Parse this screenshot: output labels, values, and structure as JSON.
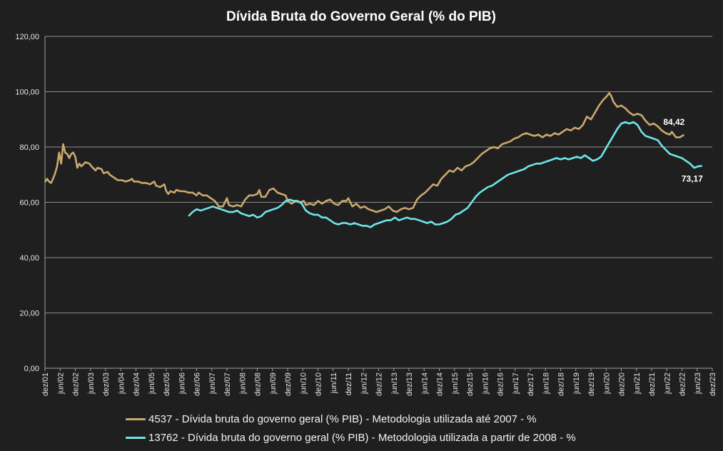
{
  "chart_data": {
    "type": "line",
    "title": "Dívida Bruta do Governo Geral (% do PIB)",
    "xlabel": "",
    "ylabel": "",
    "ylim": [
      0,
      120
    ],
    "y_ticks": [
      0,
      20,
      40,
      60,
      80,
      100,
      120
    ],
    "y_tick_labels": [
      "0,00",
      "20,00",
      "40,00",
      "60,00",
      "80,00",
      "100,00",
      "120,00"
    ],
    "x_tick_labels": [
      "dez/01",
      "jun/02",
      "dez/02",
      "jun/03",
      "dez/03",
      "jun/04",
      "dez/04",
      "jun/05",
      "dez/05",
      "jun/06",
      "dez/06",
      "jun/07",
      "dez/07",
      "jun/08",
      "dez/08",
      "jun/09",
      "dez/09",
      "jun/10",
      "dez/10",
      "jun/11",
      "dez/11",
      "jun/12",
      "dez/12",
      "jun/13",
      "dez/13",
      "jun/14",
      "dez/14",
      "jun/15",
      "dez/15",
      "jun/16",
      "dez/16",
      "jun/17",
      "dez/17",
      "jun/18",
      "dez/18",
      "jun/19",
      "dez/19",
      "jun/20",
      "dez/20",
      "jun/21",
      "dez/21",
      "jun/22",
      "dez/22",
      "jun/23",
      "dez/23"
    ],
    "grid": true,
    "series": [
      {
        "name": "4537 - Dívida bruta do governo geral (% PIB) - Metodologia utilizada até 2007 - %",
        "color": "#c9a96e",
        "last_label": "84,42",
        "points": [
          [
            0,
            67.3
          ],
          [
            1,
            68.5
          ],
          [
            2,
            67.5
          ],
          [
            3,
            67.0
          ],
          [
            4,
            68.5
          ],
          [
            5,
            70.5
          ],
          [
            6,
            73.0
          ],
          [
            7,
            78.0
          ],
          [
            8,
            74.0
          ],
          [
            9,
            81.0
          ],
          [
            10,
            78.0
          ],
          [
            11,
            77.5
          ],
          [
            12,
            76.0
          ],
          [
            13,
            77.5
          ],
          [
            14,
            78.0
          ],
          [
            15,
            76.5
          ],
          [
            16,
            72.5
          ],
          [
            17,
            74.0
          ],
          [
            18,
            73.0
          ],
          [
            20,
            74.5
          ],
          [
            22,
            74.0
          ],
          [
            23,
            73.0
          ],
          [
            25,
            71.5
          ],
          [
            26,
            72.5
          ],
          [
            28,
            72.0
          ],
          [
            29,
            70.5
          ],
          [
            31,
            71.0
          ],
          [
            32,
            70.0
          ],
          [
            34,
            69.0
          ],
          [
            36,
            68.0
          ],
          [
            38,
            68.0
          ],
          [
            40,
            67.5
          ],
          [
            42,
            68.0
          ],
          [
            43,
            68.5
          ],
          [
            44,
            67.5
          ],
          [
            46,
            67.5
          ],
          [
            48,
            67.0
          ],
          [
            50,
            67.0
          ],
          [
            52,
            66.5
          ],
          [
            54,
            67.5
          ],
          [
            55,
            66.0
          ],
          [
            57,
            65.5
          ],
          [
            59,
            66.5
          ],
          [
            60,
            64.0
          ],
          [
            61,
            63.0
          ],
          [
            62,
            64.0
          ],
          [
            64,
            63.5
          ],
          [
            65,
            64.5
          ],
          [
            67,
            64.0
          ],
          [
            69,
            64.0
          ],
          [
            71,
            63.5
          ],
          [
            73,
            63.5
          ],
          [
            75,
            62.5
          ],
          [
            76,
            63.5
          ],
          [
            78,
            62.5
          ],
          [
            80,
            62.5
          ],
          [
            82,
            61.5
          ],
          [
            84,
            60.5
          ],
          [
            86,
            58.5
          ],
          [
            88,
            58.5
          ],
          [
            90,
            61.5
          ],
          [
            91,
            59.0
          ],
          [
            93,
            58.5
          ],
          [
            95,
            59.0
          ],
          [
            97,
            58.5
          ],
          [
            99,
            61.0
          ],
          [
            101,
            62.5
          ],
          [
            103,
            62.5
          ],
          [
            105,
            63.0
          ],
          [
            106,
            64.5
          ],
          [
            107,
            62.0
          ],
          [
            109,
            62.0
          ],
          [
            111,
            64.5
          ],
          [
            113,
            65.0
          ],
          [
            115,
            63.5
          ],
          [
            117,
            63.0
          ],
          [
            119,
            62.5
          ],
          [
            120,
            60.5
          ],
          [
            122,
            59.5
          ],
          [
            124,
            60.5
          ],
          [
            126,
            60.0
          ],
          [
            128,
            60.5
          ],
          [
            129,
            59.0
          ],
          [
            131,
            59.5
          ],
          [
            133,
            59.0
          ],
          [
            135,
            60.5
          ],
          [
            137,
            59.5
          ],
          [
            139,
            60.5
          ],
          [
            141,
            61.0
          ],
          [
            143,
            59.5
          ],
          [
            145,
            59.0
          ],
          [
            147,
            60.5
          ],
          [
            149,
            60.5
          ],
          [
            150,
            61.5
          ],
          [
            152,
            58.5
          ],
          [
            154,
            59.5
          ],
          [
            156,
            58.0
          ],
          [
            158,
            58.5
          ],
          [
            160,
            57.5
          ],
          [
            162,
            57.0
          ],
          [
            164,
            56.5
          ],
          [
            166,
            57.0
          ],
          [
            168,
            57.5
          ],
          [
            170,
            58.5
          ],
          [
            172,
            57.0
          ],
          [
            174,
            56.5
          ],
          [
            176,
            57.5
          ],
          [
            178,
            58.0
          ],
          [
            180,
            57.5
          ],
          [
            182,
            58.0
          ],
          [
            184,
            61.0
          ],
          [
            186,
            62.5
          ],
          [
            188,
            63.5
          ],
          [
            190,
            65.0
          ],
          [
            192,
            66.5
          ],
          [
            194,
            66.0
          ],
          [
            196,
            68.5
          ],
          [
            198,
            70.0
          ],
          [
            200,
            71.5
          ],
          [
            202,
            71.0
          ],
          [
            204,
            72.5
          ],
          [
            206,
            71.5
          ],
          [
            208,
            73.0
          ],
          [
            210,
            73.5
          ],
          [
            212,
            74.5
          ],
          [
            214,
            76.0
          ],
          [
            216,
            77.5
          ],
          [
            218,
            78.5
          ],
          [
            220,
            79.5
          ],
          [
            222,
            80.0
          ],
          [
            224,
            79.5
          ],
          [
            226,
            81.0
          ],
          [
            228,
            81.5
          ],
          [
            230,
            82.0
          ],
          [
            232,
            83.0
          ],
          [
            234,
            83.5
          ],
          [
            236,
            84.5
          ],
          [
            238,
            85.0
          ],
          [
            240,
            84.5
          ],
          [
            242,
            84.0
          ],
          [
            244,
            84.5
          ],
          [
            246,
            83.5
          ],
          [
            248,
            84.5
          ],
          [
            250,
            84.0
          ],
          [
            252,
            85.0
          ],
          [
            254,
            84.5
          ],
          [
            256,
            85.5
          ],
          [
            258,
            86.5
          ],
          [
            260,
            86.0
          ],
          [
            262,
            87.0
          ],
          [
            264,
            86.5
          ],
          [
            266,
            88.0
          ],
          [
            268,
            91.0
          ],
          [
            270,
            90.0
          ],
          [
            272,
            92.5
          ],
          [
            274,
            95.0
          ],
          [
            276,
            97.0
          ],
          [
            278,
            98.5
          ],
          [
            279,
            99.5
          ],
          [
            280,
            98.5
          ],
          [
            281,
            96.5
          ],
          [
            283,
            94.5
          ],
          [
            285,
            95.0
          ],
          [
            287,
            94.0
          ],
          [
            289,
            92.5
          ],
          [
            291,
            91.5
          ],
          [
            293,
            92.0
          ],
          [
            295,
            91.5
          ],
          [
            297,
            89.5
          ],
          [
            299,
            88.0
          ],
          [
            301,
            88.5
          ],
          [
            303,
            87.5
          ],
          [
            305,
            86.0
          ],
          [
            307,
            85.0
          ],
          [
            309,
            84.5
          ],
          [
            310,
            85.5
          ],
          [
            312,
            83.5
          ],
          [
            314,
            83.5
          ],
          [
            316,
            84.42
          ]
        ]
      },
      {
        "name": "13762 - Dívida bruta do governo geral (% PIB) - Metodologia utilizada a partir de 2008 - %",
        "color": "#6ee6e6",
        "last_label": "73,17",
        "points": [
          [
            71,
            55.0
          ],
          [
            73,
            56.5
          ],
          [
            75,
            57.5
          ],
          [
            77,
            57.0
          ],
          [
            79,
            57.5
          ],
          [
            81,
            58.0
          ],
          [
            83,
            58.5
          ],
          [
            85,
            58.0
          ],
          [
            87,
            57.5
          ],
          [
            89,
            57.0
          ],
          [
            91,
            56.5
          ],
          [
            93,
            56.5
          ],
          [
            95,
            57.0
          ],
          [
            97,
            56.0
          ],
          [
            99,
            55.5
          ],
          [
            101,
            55.0
          ],
          [
            103,
            55.5
          ],
          [
            105,
            54.5
          ],
          [
            107,
            55.0
          ],
          [
            109,
            56.5
          ],
          [
            111,
            57.0
          ],
          [
            113,
            57.5
          ],
          [
            115,
            58.0
          ],
          [
            117,
            59.0
          ],
          [
            119,
            60.5
          ],
          [
            121,
            61.0
          ],
          [
            123,
            60.5
          ],
          [
            125,
            60.5
          ],
          [
            127,
            59.5
          ],
          [
            129,
            57.0
          ],
          [
            131,
            56.0
          ],
          [
            133,
            55.5
          ],
          [
            135,
            55.5
          ],
          [
            137,
            54.5
          ],
          [
            139,
            54.5
          ],
          [
            141,
            53.5
          ],
          [
            143,
            52.5
          ],
          [
            145,
            52.0
          ],
          [
            147,
            52.5
          ],
          [
            149,
            52.5
          ],
          [
            151,
            52.0
          ],
          [
            153,
            52.5
          ],
          [
            155,
            52.0
          ],
          [
            157,
            51.5
          ],
          [
            159,
            51.5
          ],
          [
            161,
            51.0
          ],
          [
            163,
            52.0
          ],
          [
            165,
            52.5
          ],
          [
            167,
            53.0
          ],
          [
            169,
            53.5
          ],
          [
            171,
            53.5
          ],
          [
            173,
            54.5
          ],
          [
            175,
            53.5
          ],
          [
            177,
            54.0
          ],
          [
            179,
            54.5
          ],
          [
            181,
            54.0
          ],
          [
            183,
            54.0
          ],
          [
            185,
            53.5
          ],
          [
            187,
            53.0
          ],
          [
            189,
            52.5
          ],
          [
            191,
            53.0
          ],
          [
            193,
            52.0
          ],
          [
            195,
            52.0
          ],
          [
            197,
            52.5
          ],
          [
            199,
            53.0
          ],
          [
            201,
            54.0
          ],
          [
            203,
            55.5
          ],
          [
            205,
            56.0
          ],
          [
            207,
            57.0
          ],
          [
            209,
            58.0
          ],
          [
            211,
            60.0
          ],
          [
            213,
            62.0
          ],
          [
            215,
            63.5
          ],
          [
            217,
            64.5
          ],
          [
            219,
            65.5
          ],
          [
            221,
            66.0
          ],
          [
            223,
            67.0
          ],
          [
            225,
            68.0
          ],
          [
            227,
            69.0
          ],
          [
            229,
            70.0
          ],
          [
            231,
            70.5
          ],
          [
            233,
            71.0
          ],
          [
            235,
            71.5
          ],
          [
            237,
            72.0
          ],
          [
            239,
            73.0
          ],
          [
            241,
            73.5
          ],
          [
            243,
            74.0
          ],
          [
            245,
            74.0
          ],
          [
            247,
            74.5
          ],
          [
            249,
            75.0
          ],
          [
            251,
            75.5
          ],
          [
            253,
            76.0
          ],
          [
            255,
            75.5
          ],
          [
            257,
            76.0
          ],
          [
            259,
            75.5
          ],
          [
            261,
            76.0
          ],
          [
            263,
            76.5
          ],
          [
            265,
            76.0
          ],
          [
            267,
            77.0
          ],
          [
            269,
            76.0
          ],
          [
            271,
            75.0
          ],
          [
            273,
            75.5
          ],
          [
            275,
            76.5
          ],
          [
            277,
            79.0
          ],
          [
            279,
            81.5
          ],
          [
            281,
            84.0
          ],
          [
            283,
            86.5
          ],
          [
            285,
            88.5
          ],
          [
            287,
            89.0
          ],
          [
            289,
            88.5
          ],
          [
            291,
            89.0
          ],
          [
            293,
            88.0
          ],
          [
            295,
            85.5
          ],
          [
            297,
            84.0
          ],
          [
            299,
            83.5
          ],
          [
            301,
            83.0
          ],
          [
            303,
            82.5
          ],
          [
            305,
            80.5
          ],
          [
            307,
            79.0
          ],
          [
            309,
            77.5
          ],
          [
            311,
            77.0
          ],
          [
            313,
            76.5
          ],
          [
            315,
            76.0
          ],
          [
            317,
            75.0
          ],
          [
            319,
            74.0
          ],
          [
            321,
            72.5
          ],
          [
            323,
            73.0
          ],
          [
            325,
            73.17
          ]
        ]
      }
    ]
  }
}
